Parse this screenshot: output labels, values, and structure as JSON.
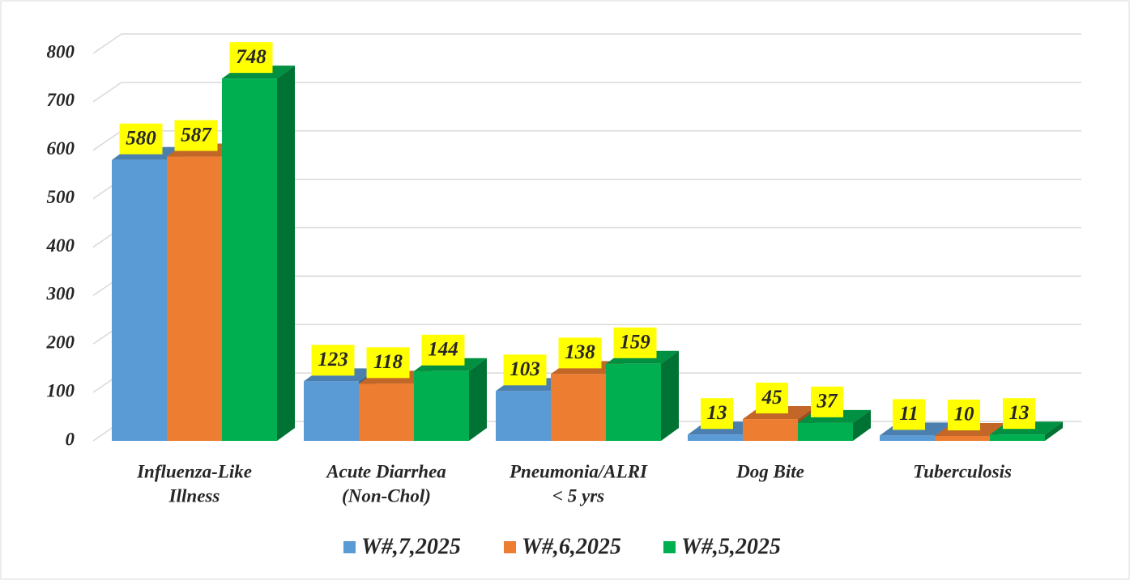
{
  "chart_data": {
    "type": "bar3d",
    "categories": [
      [
        "Influenza-Like",
        "Illness"
      ],
      [
        "Acute Diarrhea",
        "(Non-Chol)"
      ],
      [
        "Pneumonia/ALRI",
        "< 5 yrs"
      ],
      [
        "Dog Bite"
      ],
      [
        "Tuberculosis"
      ]
    ],
    "series": [
      {
        "name": "W#,7,2025",
        "color": "#5b9bd5",
        "values": [
          580,
          123,
          103,
          13,
          11
        ]
      },
      {
        "name": "W#,6,2025",
        "color": "#ed7d31",
        "values": [
          587,
          118,
          138,
          45,
          10
        ]
      },
      {
        "name": "W#,5,2025",
        "color": "#00b050",
        "values": [
          748,
          144,
          159,
          37,
          13
        ]
      }
    ],
    "ylim": [
      0,
      800
    ],
    "yticks": [
      0,
      100,
      200,
      300,
      400,
      500,
      600,
      700,
      800
    ],
    "grid": true,
    "legend": "bottom",
    "label_background": "#ffff00"
  }
}
